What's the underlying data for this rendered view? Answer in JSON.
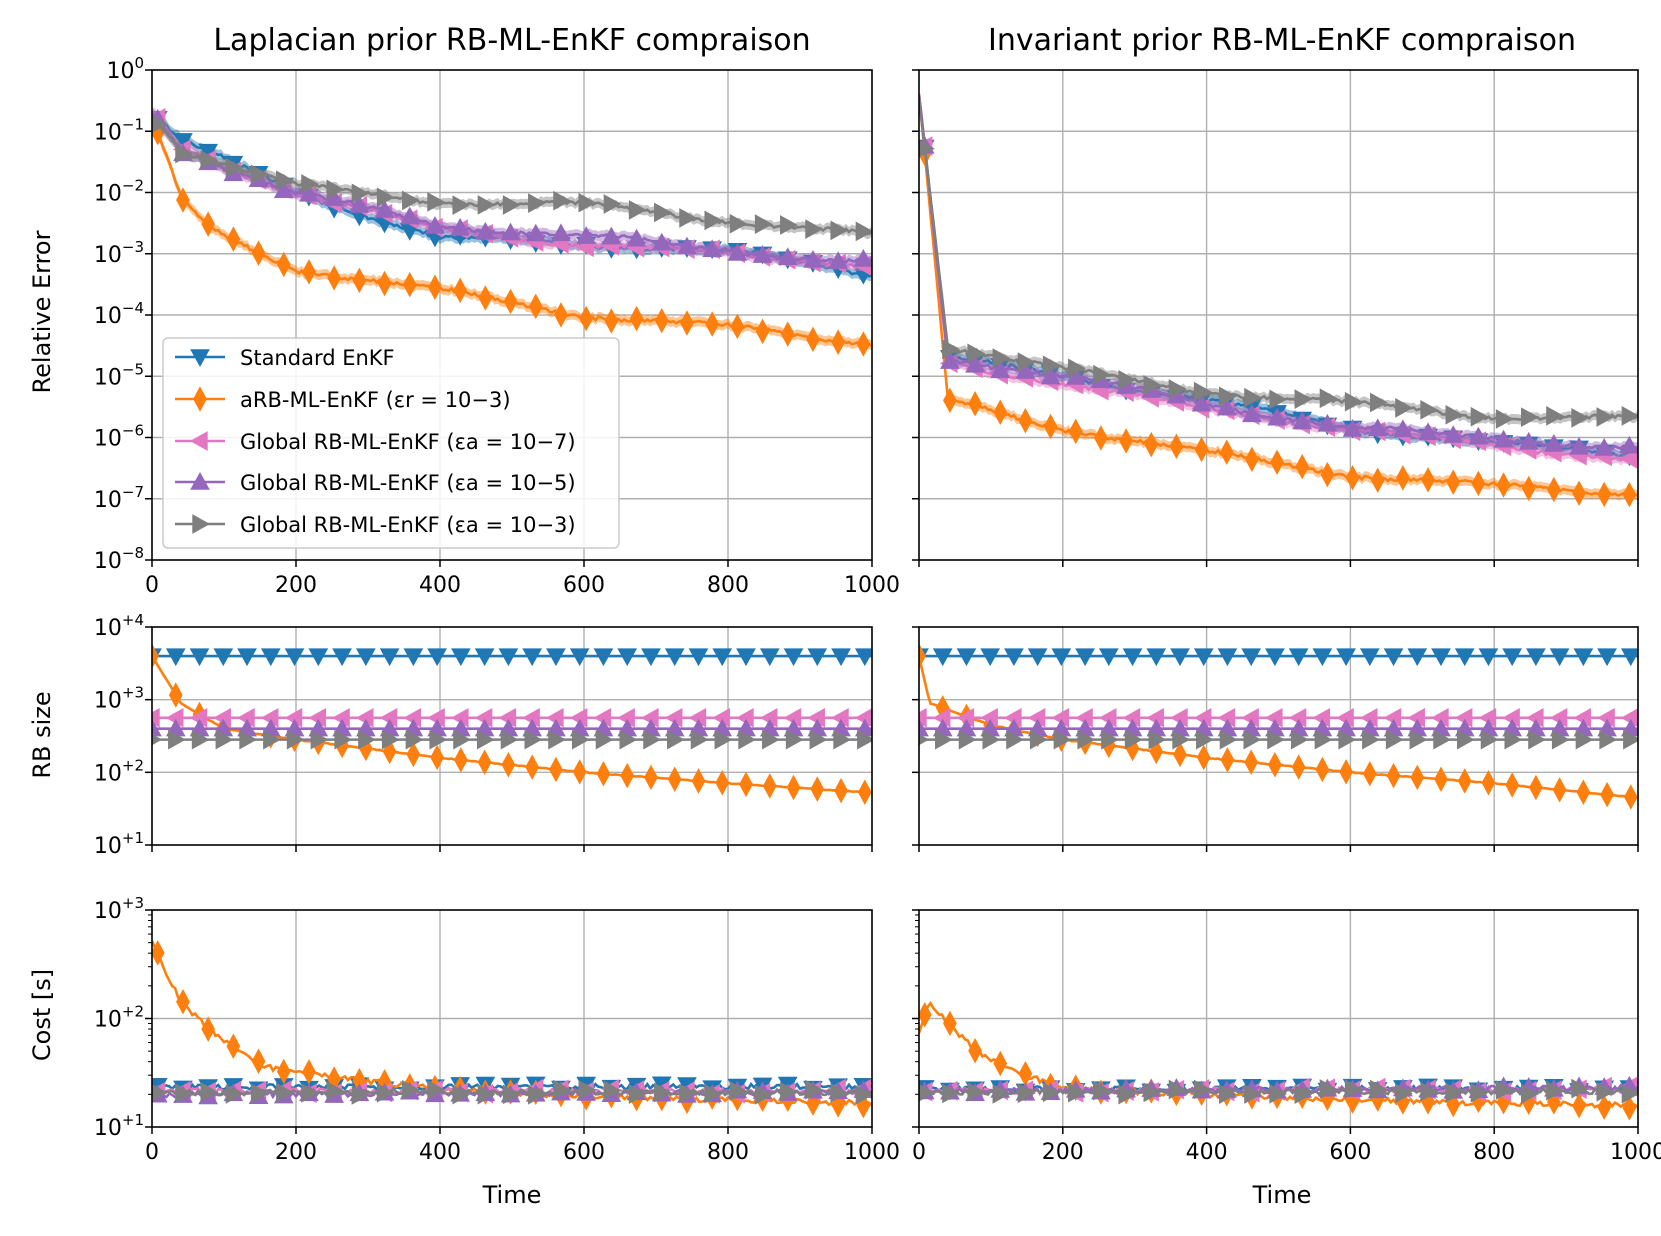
{
  "chart_data": [
    {
      "type": "line",
      "id": "err_left",
      "panel": "top-left",
      "title": "Laplacian prior RB-ML-EnKF compraison",
      "xlabel": "",
      "ylabel": "Relative Error",
      "xlim": [
        0,
        1000
      ],
      "ylim_exp": [
        -8,
        0
      ],
      "yscale": "log",
      "xticks": [
        "0",
        "200",
        "400",
        "600",
        "800",
        "1000"
      ],
      "yticks": [
        {
          "base": "10",
          "exp": "0"
        },
        {
          "base": "10",
          "exp": "−1"
        },
        {
          "base": "10",
          "exp": "−2"
        },
        {
          "base": "10",
          "exp": "−3"
        },
        {
          "base": "10",
          "exp": "−4"
        },
        {
          "base": "10",
          "exp": "−5"
        },
        {
          "base": "10",
          "exp": "−6"
        },
        {
          "base": "10",
          "exp": "−7"
        },
        {
          "base": "10",
          "exp": "−8"
        }
      ],
      "grid": true,
      "legend": "left",
      "series": [
        {
          "name": "Standard EnKF",
          "x": [
            0,
            40,
            200,
            400,
            600,
            800,
            1000
          ],
          "log10": [
            -0.7,
            -1.15,
            -2.0,
            -2.75,
            -2.85,
            -2.95,
            -3.35
          ]
        },
        {
          "name": "aRB-ML-EnKF",
          "x": [
            0,
            40,
            80,
            200,
            400,
            600,
            800,
            1000
          ],
          "log10": [
            -0.8,
            -2.1,
            -2.6,
            -3.25,
            -3.6,
            -4.0,
            -4.2,
            -4.45
          ]
        },
        {
          "name": "Global RB-ML-EnKF 1e-7",
          "x": [
            0,
            40,
            200,
            400,
            600,
            800,
            1000
          ],
          "log10": [
            -0.7,
            -1.3,
            -2.0,
            -2.6,
            -2.85,
            -3.0,
            -3.2
          ]
        },
        {
          "name": "Global RB-ML-EnKF 1e-5",
          "x": [
            0,
            40,
            200,
            400,
            600,
            800,
            1000
          ],
          "log10": [
            -0.7,
            -1.3,
            -2.0,
            -2.55,
            -2.7,
            -2.95,
            -3.15
          ]
        },
        {
          "name": "Global RB-ML-EnKF 1e-3",
          "x": [
            0,
            40,
            200,
            400,
            600,
            800,
            1000
          ],
          "log10": [
            -0.7,
            -1.3,
            -1.9,
            -2.15,
            -2.2,
            -2.45,
            -2.7
          ]
        }
      ]
    },
    {
      "type": "line",
      "id": "err_right",
      "panel": "top-right",
      "title": "Invariant prior RB-ML-EnKF compraison",
      "xlabel": "",
      "ylabel": "",
      "xlim": [
        0,
        1000
      ],
      "ylim_exp": [
        -8,
        0
      ],
      "yscale": "log",
      "grid": true,
      "series": [
        {
          "name": "Standard EnKF",
          "x": [
            0,
            40,
            200,
            400,
            600,
            800,
            1000
          ],
          "log10": [
            -0.4,
            -4.7,
            -5.0,
            -5.4,
            -5.85,
            -6.1,
            -6.3
          ]
        },
        {
          "name": "aRB-ML-EnKF",
          "x": [
            0,
            40,
            200,
            400,
            600,
            800,
            1000
          ],
          "log10": [
            -0.4,
            -5.4,
            -5.85,
            -6.25,
            -6.6,
            -6.8,
            -6.9
          ]
        },
        {
          "name": "Global RB-ML-EnKF 1e-7",
          "x": [
            0,
            40,
            200,
            400,
            600,
            800,
            1000
          ],
          "log10": [
            -0.4,
            -4.8,
            -5.1,
            -5.55,
            -5.85,
            -6.15,
            -6.35
          ]
        },
        {
          "name": "Global RB-ML-EnKF 1e-5",
          "x": [
            0,
            40,
            200,
            400,
            600,
            800,
            1000
          ],
          "log10": [
            -0.4,
            -4.7,
            -5.0,
            -5.45,
            -5.85,
            -6.0,
            -6.2
          ]
        },
        {
          "name": "Global RB-ML-EnKF 1e-3",
          "x": [
            0,
            40,
            200,
            400,
            600,
            800,
            1000
          ],
          "log10": [
            -0.4,
            -4.5,
            -4.9,
            -5.25,
            -5.45,
            -5.65,
            -5.7
          ]
        }
      ]
    },
    {
      "type": "line",
      "id": "rb_left",
      "panel": "middle-left",
      "ylabel": "RB size",
      "xlabel": "",
      "xlim": [
        0,
        1000
      ],
      "ylim_exp": [
        1,
        4
      ],
      "yscale": "log",
      "yticks": [
        {
          "base": "10",
          "exp": "+4"
        },
        {
          "base": "10",
          "exp": "+3"
        },
        {
          "base": "10",
          "exp": "+2"
        },
        {
          "base": "10",
          "exp": "+1"
        }
      ],
      "grid": true,
      "series": [
        {
          "name": "Standard EnKF",
          "x": [
            0,
            1000
          ],
          "log10": [
            3.6,
            3.6
          ]
        },
        {
          "name": "aRB-ML-EnKF",
          "x": [
            0,
            40,
            100,
            200,
            400,
            600,
            800,
            1000
          ],
          "log10": [
            3.6,
            2.95,
            2.6,
            2.45,
            2.2,
            2.0,
            1.85,
            1.72
          ]
        },
        {
          "name": "Global RB-ML-EnKF 1e-7",
          "x": [
            0,
            1000
          ],
          "log10": [
            2.75,
            2.75
          ]
        },
        {
          "name": "Global RB-ML-EnKF 1e-5",
          "x": [
            0,
            1000
          ],
          "log10": [
            2.6,
            2.6
          ]
        },
        {
          "name": "Global RB-ML-EnKF 1e-3",
          "x": [
            0,
            1000
          ],
          "log10": [
            2.45,
            2.45
          ]
        }
      ]
    },
    {
      "type": "line",
      "id": "rb_right",
      "panel": "middle-right",
      "ylabel": "",
      "xlabel": "",
      "xlim": [
        0,
        1000
      ],
      "ylim_exp": [
        1,
        4
      ],
      "yscale": "log",
      "grid": true,
      "series": [
        {
          "name": "Standard EnKF",
          "x": [
            0,
            1000
          ],
          "log10": [
            3.6,
            3.6
          ]
        },
        {
          "name": "aRB-ML-EnKF",
          "x": [
            0,
            15,
            100,
            200,
            400,
            600,
            800,
            1000
          ],
          "log10": [
            3.6,
            2.95,
            2.65,
            2.45,
            2.2,
            2.0,
            1.85,
            1.65
          ]
        },
        {
          "name": "Global RB-ML-EnKF 1e-7",
          "x": [
            0,
            1000
          ],
          "log10": [
            2.75,
            2.75
          ]
        },
        {
          "name": "Global RB-ML-EnKF 1e-5",
          "x": [
            0,
            1000
          ],
          "log10": [
            2.6,
            2.6
          ]
        },
        {
          "name": "Global RB-ML-EnKF 1e-3",
          "x": [
            0,
            1000
          ],
          "log10": [
            2.45,
            2.45
          ]
        }
      ]
    },
    {
      "type": "line",
      "id": "cost_left",
      "panel": "bottom-left",
      "ylabel": "Cost   [s]",
      "xlabel": "Time",
      "xlim": [
        0,
        1000
      ],
      "ylim_exp": [
        1,
        3
      ],
      "yscale": "log",
      "xticks": [
        "0",
        "200",
        "400",
        "600",
        "800",
        "1000"
      ],
      "yticks": [
        {
          "base": "10",
          "exp": "+3"
        },
        {
          "base": "10",
          "exp": "+2"
        },
        {
          "base": "10",
          "exp": "+1"
        }
      ],
      "grid": true,
      "series": [
        {
          "name": "Standard EnKF",
          "x": [
            0,
            1000
          ],
          "log10": [
            1.37,
            1.37
          ]
        },
        {
          "name": "aRB-ML-EnKF",
          "x": [
            0,
            10,
            40,
            80,
            120,
            160,
            200,
            300,
            400,
            600,
            800,
            1000
          ],
          "log10": [
            2.7,
            2.55,
            2.15,
            1.9,
            1.7,
            1.55,
            1.5,
            1.42,
            1.35,
            1.28,
            1.25,
            1.22
          ]
        },
        {
          "name": "Global RB-ML-EnKF 1e-7",
          "x": [
            0,
            1000
          ],
          "log10": [
            1.33,
            1.33
          ]
        },
        {
          "name": "Global RB-ML-EnKF 1e-5",
          "x": [
            0,
            1000
          ],
          "log10": [
            1.3,
            1.32
          ]
        },
        {
          "name": "Global RB-ML-EnKF 1e-3",
          "x": [
            0,
            1000
          ],
          "log10": [
            1.32,
            1.32
          ]
        }
      ]
    },
    {
      "type": "line",
      "id": "cost_right",
      "panel": "bottom-right",
      "ylabel": "",
      "xlabel": "Time",
      "xlim": [
        0,
        1000
      ],
      "ylim_exp": [
        1,
        3
      ],
      "yscale": "log",
      "xticks": [
        "0",
        "200",
        "400",
        "600",
        "800",
        "1000"
      ],
      "grid": true,
      "series": [
        {
          "name": "Standard EnKF",
          "x": [
            0,
            1000
          ],
          "log10": [
            1.35,
            1.35
          ]
        },
        {
          "name": "aRB-ML-EnKF",
          "x": [
            0,
            15,
            40,
            80,
            120,
            160,
            200,
            400,
            600,
            800,
            1000
          ],
          "log10": [
            1.85,
            2.15,
            1.95,
            1.7,
            1.55,
            1.45,
            1.35,
            1.3,
            1.25,
            1.22,
            1.2
          ]
        },
        {
          "name": "Global RB-ML-EnKF 1e-7",
          "x": [
            0,
            1000
          ],
          "log10": [
            1.33,
            1.35
          ]
        },
        {
          "name": "Global RB-ML-EnKF 1e-5",
          "x": [
            0,
            1000
          ],
          "log10": [
            1.33,
            1.36
          ]
        },
        {
          "name": "Global RB-ML-EnKF 1e-3",
          "x": [
            0,
            1000
          ],
          "log10": [
            1.32,
            1.33
          ]
        }
      ]
    }
  ],
  "legend": {
    "entries": [
      {
        "label": "Standard EnKF"
      },
      {
        "label": "aRB-ML-EnKF (εr = 10−3)"
      },
      {
        "label": "Global RB-ML-EnKF (εa = 10−7)"
      },
      {
        "label": "Global RB-ML-EnKF (εa = 10−5)"
      },
      {
        "label": "Global RB-ML-EnKF (εa = 10−3)"
      }
    ]
  },
  "series_styles": [
    {
      "color": "#1f77b4",
      "marker": "tri-down"
    },
    {
      "color": "#ff7f0e",
      "marker": "diamond"
    },
    {
      "color": "#e377c2",
      "marker": "tri-left"
    },
    {
      "color": "#9467bd",
      "marker": "tri-up"
    },
    {
      "color": "#7f7f7f",
      "marker": "tri-right"
    }
  ]
}
